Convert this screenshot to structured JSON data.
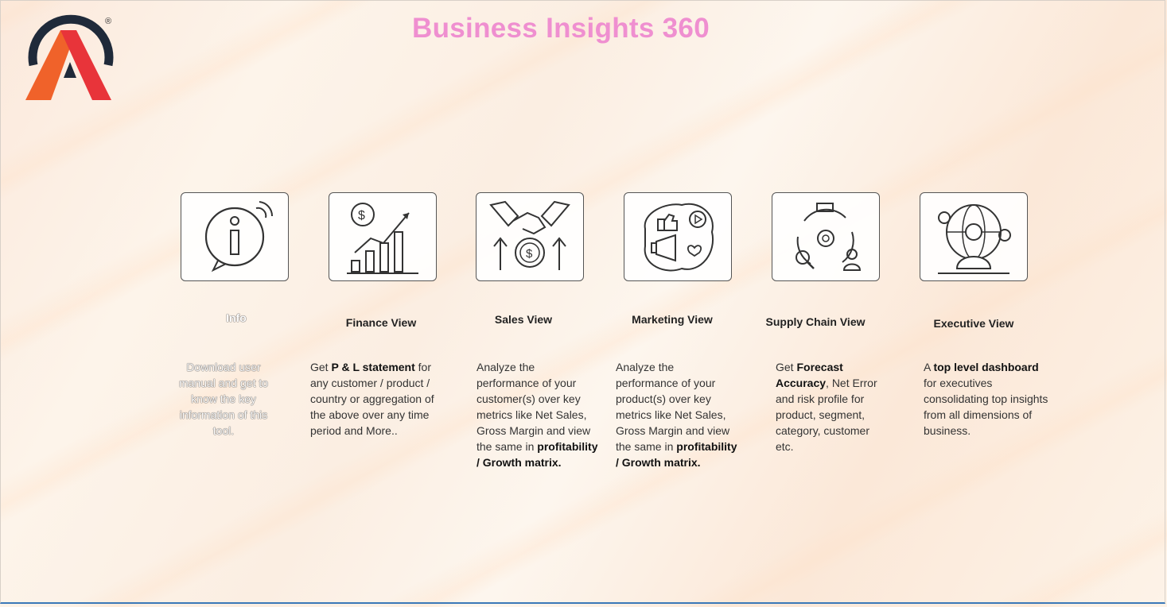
{
  "header": {
    "title": "Business Insights 360",
    "logo_mark": "®"
  },
  "cards": [
    {
      "id": "info",
      "icon": "info-bubble-icon",
      "label": "Info",
      "desc_parts": [
        {
          "t": "Download user manual and get to know the key information of this tool.",
          "b": false
        }
      ]
    },
    {
      "id": "finance",
      "icon": "finance-chart-icon",
      "label": "Finance View",
      "desc_parts": [
        {
          "t": "Get  ",
          "b": false
        },
        {
          "t": "P & L statement",
          "b": true
        },
        {
          "t": " for any customer / product / country or aggregation of the above over any time period and More..",
          "b": false
        }
      ]
    },
    {
      "id": "sales",
      "icon": "handshake-dollar-icon",
      "label": "Sales View",
      "desc_parts": [
        {
          "t": "Analyze the performance of your customer(s) over key metrics like Net Sales, Gross Margin and view the same in ",
          "b": false
        },
        {
          "t": "profitability / Growth matrix.",
          "b": true
        }
      ]
    },
    {
      "id": "marketing",
      "icon": "megaphone-social-icon",
      "label": "Marketing View",
      "desc_parts": [
        {
          "t": "Analyze the performance of your product(s) over key metrics like Net Sales, Gross Margin and view the same in ",
          "b": false
        },
        {
          "t": "profitability / Growth matrix.",
          "b": true
        }
      ]
    },
    {
      "id": "supply",
      "icon": "supply-chain-cycle-icon",
      "label": "Supply Chain View",
      "desc_parts": [
        {
          "t": "Get ",
          "b": false
        },
        {
          "t": "Forecast Accuracy",
          "b": true
        },
        {
          "t": ", Net Error and risk profile for product, segment, category, customer etc.",
          "b": false
        }
      ]
    },
    {
      "id": "executive",
      "icon": "executive-globe-icon",
      "label": "Executive View",
      "desc_parts": [
        {
          "t": "A ",
          "b": false
        },
        {
          "t": "top level dashboard",
          "b": true
        },
        {
          "t": " for executives consolidating top insights from all dimensions of business.",
          "b": false
        }
      ]
    }
  ],
  "colors": {
    "title": "#ef8fd0",
    "logo_ring": "#1f2a3a",
    "logo_a_left": "#f0622a",
    "logo_a_right": "#e8343a",
    "bottom_border": "#3a78b8"
  }
}
